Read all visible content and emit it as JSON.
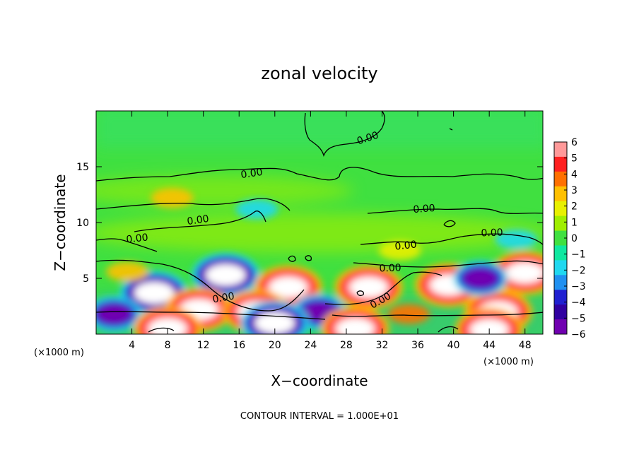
{
  "chart_data": {
    "type": "heatmap",
    "title": "zonal velocity",
    "xlabel": "X−coordinate",
    "ylabel": "Z−coordinate",
    "x_scale_note": "(×1000 m)",
    "z_scale_note": "(×1000 m)",
    "footer": "CONTOUR INTERVAL = 1.000E+01",
    "xlim": [
      0,
      50
    ],
    "ylim": [
      0,
      20
    ],
    "x_ticks": [
      4,
      8,
      12,
      16,
      20,
      24,
      28,
      32,
      36,
      40,
      44,
      48
    ],
    "y_ticks": [
      5,
      10,
      15
    ],
    "colorbar": {
      "range": [
        -6,
        6
      ],
      "ticks": [
        "6",
        "5",
        "4",
        "3",
        "2",
        "1",
        "0",
        "−1",
        "−2",
        "−3",
        "−4",
        "−5",
        "−6"
      ],
      "colors": [
        "#ff9999",
        "#ff2020",
        "#ff7000",
        "#ffc000",
        "#e8f000",
        "#a0ee00",
        "#40e040",
        "#10e8a0",
        "#20d8f0",
        "#2090f0",
        "#2020d0",
        "#3000a0",
        "#7000b0"
      ]
    },
    "contour_level_labels": [
      "0.00",
      "0.00",
      "0.00",
      "0.00",
      "0.00",
      "0.00",
      "0.00",
      "0.00",
      "0.00",
      "0.00"
    ],
    "features": [
      {
        "x": 6.5,
        "z": 3.7,
        "value": -6
      },
      {
        "x": 14.5,
        "z": 5.3,
        "value": -5
      },
      {
        "x": 21.5,
        "z": 4.2,
        "value": 6
      },
      {
        "x": 30.5,
        "z": 4.2,
        "value": 6
      },
      {
        "x": 39.5,
        "z": 4.4,
        "value": 6
      },
      {
        "x": 48,
        "z": 5.5,
        "value": 6
      },
      {
        "x": 3.5,
        "z": 5.6,
        "value": 3
      },
      {
        "x": 8.5,
        "z": 12.2,
        "value": 3
      },
      {
        "x": 18,
        "z": 11.2,
        "value": -2
      },
      {
        "x": 2,
        "z": 1.8,
        "value": -4
      },
      {
        "x": 11.5,
        "z": 2.2,
        "value": 5
      },
      {
        "x": 18,
        "z": 2.0,
        "value": 5
      },
      {
        "x": 25,
        "z": 2.0,
        "value": -4
      },
      {
        "x": 35,
        "z": 1.8,
        "value": 4
      },
      {
        "x": 45,
        "z": 2.0,
        "value": 5
      },
      {
        "x": 43,
        "z": 5.0,
        "value": -4
      },
      {
        "x": 8,
        "z": 0.5,
        "value": 6
      },
      {
        "x": 29,
        "z": 0.5,
        "value": 6
      },
      {
        "x": 44,
        "z": 0.4,
        "value": 6
      },
      {
        "x": 20,
        "z": 1.0,
        "value": -5
      },
      {
        "x": 47,
        "z": 8.5,
        "value": -2
      },
      {
        "x": 34,
        "z": 7.5,
        "value": 2
      }
    ]
  }
}
